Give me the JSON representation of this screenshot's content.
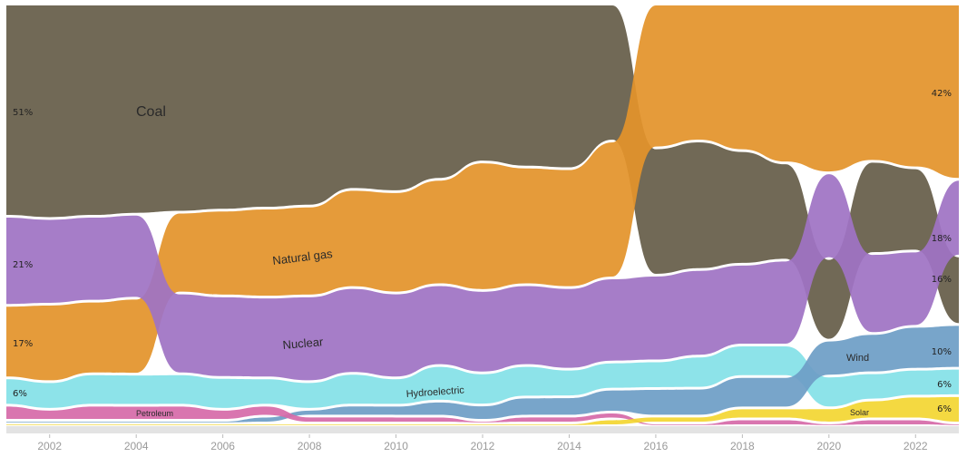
{
  "chart_data": {
    "type": "area",
    "subtype": "bump-stream (ranked stacked area)",
    "title": "",
    "xlabel": "",
    "ylabel": "",
    "x": [
      2001,
      2002,
      2003,
      2004,
      2005,
      2006,
      2007,
      2008,
      2009,
      2010,
      2011,
      2012,
      2013,
      2014,
      2015,
      2016,
      2017,
      2018,
      2019,
      2020,
      2021,
      2022,
      2023
    ],
    "xlim": [
      2001,
      2023
    ],
    "x_ticks": [
      "2002",
      "2004",
      "2006",
      "2008",
      "2010",
      "2012",
      "2014",
      "2016",
      "2018",
      "2020",
      "2022"
    ],
    "series": [
      {
        "name": "Coal",
        "color": "#665e49",
        "label": "Coal",
        "values": [
          51,
          51,
          51,
          51,
          50,
          49,
          49,
          48,
          44,
          45,
          42,
          37,
          39,
          39,
          33,
          30,
          30,
          27,
          23,
          19,
          22,
          20,
          16
        ],
        "label_start": "51%",
        "label_end": "16%"
      },
      {
        "name": "Natural gas",
        "color": "#e3932b",
        "label": "Natural gas",
        "values": [
          17,
          18,
          17,
          18,
          19,
          20,
          21,
          21,
          23,
          24,
          25,
          30,
          28,
          28,
          33,
          34,
          32,
          35,
          38,
          40,
          38,
          40,
          42
        ],
        "label_start": "17%",
        "label_end": "42%"
      },
      {
        "name": "Nuclear",
        "color": "#9f73c4",
        "label": "Nuclear",
        "values": [
          21,
          20,
          20,
          20,
          19,
          19,
          19,
          20,
          20,
          20,
          19,
          19,
          19,
          19,
          20,
          20,
          20,
          19,
          20,
          20,
          19,
          18,
          18
        ],
        "label_start": "21%",
        "label_end": "18%"
      },
      {
        "name": "Hydroelectric",
        "color": "#84e1e7",
        "label": "Hydroelectric",
        "values": [
          6,
          6,
          7,
          7,
          7,
          7,
          6,
          6,
          7,
          6,
          8,
          7,
          7,
          6,
          6,
          6,
          7,
          7,
          7,
          7,
          6,
          6,
          6
        ],
        "label_start": "6%",
        "label_end": "6%"
      },
      {
        "name": "Wind",
        "color": "#6e9ec6",
        "label": "Wind",
        "values": [
          0,
          0,
          0,
          0,
          0,
          0,
          1,
          1,
          2,
          2,
          3,
          3,
          4,
          4,
          5,
          6,
          6,
          7,
          7,
          8,
          9,
          10,
          10
        ],
        "label_start": "",
        "label_end": "10%"
      },
      {
        "name": "Petroleum",
        "color": "#d66aa9",
        "label": "Petroleum",
        "values": [
          3,
          2,
          3,
          3,
          3,
          2,
          2,
          1,
          1,
          1,
          1,
          0,
          1,
          1,
          1,
          0,
          0,
          1,
          1,
          0,
          1,
          1,
          0
        ],
        "label_start": "",
        "label_end": ""
      },
      {
        "name": "Solar",
        "color": "#f3d633",
        "label": "Solar",
        "values": [
          0,
          0,
          0,
          0,
          0,
          0,
          0,
          0,
          0,
          0,
          0,
          0,
          0,
          0,
          1,
          1,
          1,
          2,
          2,
          3,
          4,
          5,
          6
        ],
        "label_start": "",
        "label_end": "6%"
      }
    ],
    "other_band_color": "#e3e3e3",
    "grid": false,
    "legend": "inline labels"
  }
}
